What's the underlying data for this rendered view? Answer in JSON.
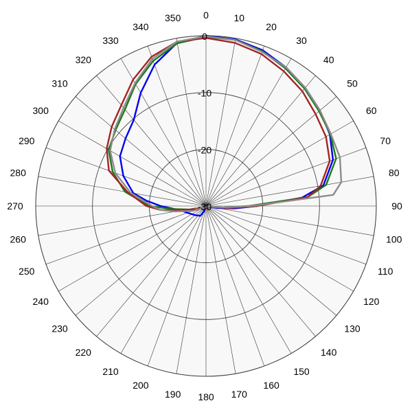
{
  "chart_data": {
    "type": "polar-line",
    "angle_labels": [
      "0",
      "10",
      "20",
      "30",
      "40",
      "50",
      "60",
      "70",
      "80",
      "90",
      "100",
      "110",
      "120",
      "130",
      "140",
      "150",
      "160",
      "170",
      "180",
      "190",
      "200",
      "210",
      "220",
      "230",
      "240",
      "250",
      "260",
      "270",
      "280",
      "290",
      "300",
      "310",
      "320",
      "330",
      "340",
      "350"
    ],
    "angle_direction": "clockwise",
    "zero_at": "top",
    "radial_range": [
      -30,
      0
    ],
    "radial_ticks": [
      {
        "value": 0,
        "label": "0"
      },
      {
        "value": -10,
        "label": "-10"
      },
      {
        "value": -20,
        "label": "-20"
      },
      {
        "value": -30,
        "label": "-30"
      }
    ],
    "outer_ring_value": 0,
    "grid": true,
    "series": [
      {
        "color": "#0000ee",
        "points": [
          [
            0,
            0
          ],
          [
            10,
            -0.2
          ],
          [
            20,
            -0.8
          ],
          [
            30,
            -1.8
          ],
          [
            40,
            -2.8
          ],
          [
            50,
            -3.8
          ],
          [
            60,
            -4.8
          ],
          [
            70,
            -6.2
          ],
          [
            80,
            -9.0
          ],
          [
            85,
            -13.0
          ],
          [
            90,
            -21.0
          ],
          [
            95,
            -25.0
          ],
          [
            100,
            -28.0
          ],
          [
            110,
            -30.0
          ],
          [
            200,
            -29.0
          ],
          [
            210,
            -28.0
          ],
          [
            230,
            -27.5
          ],
          [
            250,
            -26.5
          ],
          [
            260,
            -25.5
          ],
          [
            270,
            -22.0
          ],
          [
            275,
            -19.5
          ],
          [
            280,
            -17.0
          ],
          [
            290,
            -14.5
          ],
          [
            300,
            -12.5
          ],
          [
            310,
            -11.5
          ],
          [
            320,
            -10.2
          ],
          [
            330,
            -7.0
          ],
          [
            340,
            -3.5
          ],
          [
            350,
            -0.8
          ],
          [
            360,
            0
          ]
        ]
      },
      {
        "color": "#1a7a1a",
        "points": [
          [
            0,
            -0.2
          ],
          [
            10,
            -0.3
          ],
          [
            20,
            -1.0
          ],
          [
            30,
            -2.0
          ],
          [
            40,
            -3.0
          ],
          [
            50,
            -4.0
          ],
          [
            60,
            -4.7
          ],
          [
            70,
            -5.6
          ],
          [
            80,
            -8.5
          ],
          [
            85,
            -12.0
          ],
          [
            90,
            -22.5
          ],
          [
            95,
            -27.0
          ],
          [
            100,
            -29.5
          ],
          [
            250,
            -28.0
          ],
          [
            260,
            -26.5
          ],
          [
            265,
            -24.0
          ],
          [
            270,
            -20.0
          ],
          [
            280,
            -15.5
          ],
          [
            290,
            -12.5
          ],
          [
            300,
            -10.2
          ],
          [
            310,
            -9.2
          ],
          [
            320,
            -7.8
          ],
          [
            330,
            -5.2
          ],
          [
            340,
            -2.8
          ],
          [
            350,
            -0.9
          ],
          [
            360,
            -0.2
          ]
        ]
      },
      {
        "color": "#a32424",
        "points": [
          [
            0,
            -0.4
          ],
          [
            10,
            -0.8
          ],
          [
            20,
            -1.5
          ],
          [
            30,
            -2.6
          ],
          [
            40,
            -3.6
          ],
          [
            50,
            -4.8
          ],
          [
            60,
            -5.6
          ],
          [
            70,
            -6.8
          ],
          [
            80,
            -9.5
          ],
          [
            85,
            -12.0
          ],
          [
            90,
            -21.0
          ],
          [
            95,
            -26.0
          ],
          [
            100,
            -29.0
          ],
          [
            250,
            -28.5
          ],
          [
            260,
            -26.0
          ],
          [
            265,
            -22.0
          ],
          [
            270,
            -19.5
          ],
          [
            280,
            -16.0
          ],
          [
            290,
            -11.8
          ],
          [
            300,
            -9.8
          ],
          [
            310,
            -8.3
          ],
          [
            320,
            -6.8
          ],
          [
            330,
            -4.3
          ],
          [
            340,
            -2.0
          ],
          [
            350,
            -0.6
          ],
          [
            360,
            -0.4
          ]
        ]
      },
      {
        "color": "#8c8c8c",
        "points": [
          [
            0,
            -0.1
          ],
          [
            10,
            -0.3
          ],
          [
            20,
            -1.1
          ],
          [
            30,
            -1.8
          ],
          [
            40,
            -2.8
          ],
          [
            50,
            -3.8
          ],
          [
            60,
            -4.6
          ],
          [
            70,
            -4.9
          ],
          [
            80,
            -5.8
          ],
          [
            85,
            -7.5
          ],
          [
            90,
            -22.0
          ],
          [
            95,
            -27.0
          ],
          [
            100,
            -29.5
          ],
          [
            250,
            -27.5
          ],
          [
            260,
            -24.5
          ],
          [
            265,
            -22.0
          ],
          [
            270,
            -20.5
          ],
          [
            280,
            -16.5
          ],
          [
            290,
            -13.0
          ],
          [
            300,
            -10.5
          ],
          [
            310,
            -9.0
          ],
          [
            320,
            -7.4
          ],
          [
            330,
            -5.0
          ],
          [
            340,
            -2.4
          ],
          [
            350,
            -0.6
          ],
          [
            360,
            -0.1
          ]
        ]
      }
    ]
  }
}
